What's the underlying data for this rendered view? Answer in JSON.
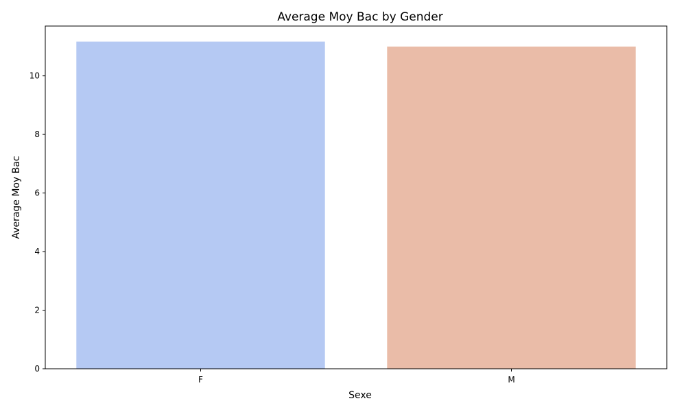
{
  "chart_data": {
    "type": "bar",
    "title": "Average Moy Bac by Gender",
    "xlabel": "Sexe",
    "ylabel": "Average Moy Bac",
    "categories": [
      "F",
      "M"
    ],
    "values": [
      11.17,
      11.0
    ],
    "colors": [
      "#b5c9f3",
      "#eabca8"
    ],
    "ylim": [
      0,
      11.7
    ],
    "yticks": [
      0,
      2,
      4,
      6,
      8,
      10
    ],
    "grid": false,
    "legend": "none"
  }
}
